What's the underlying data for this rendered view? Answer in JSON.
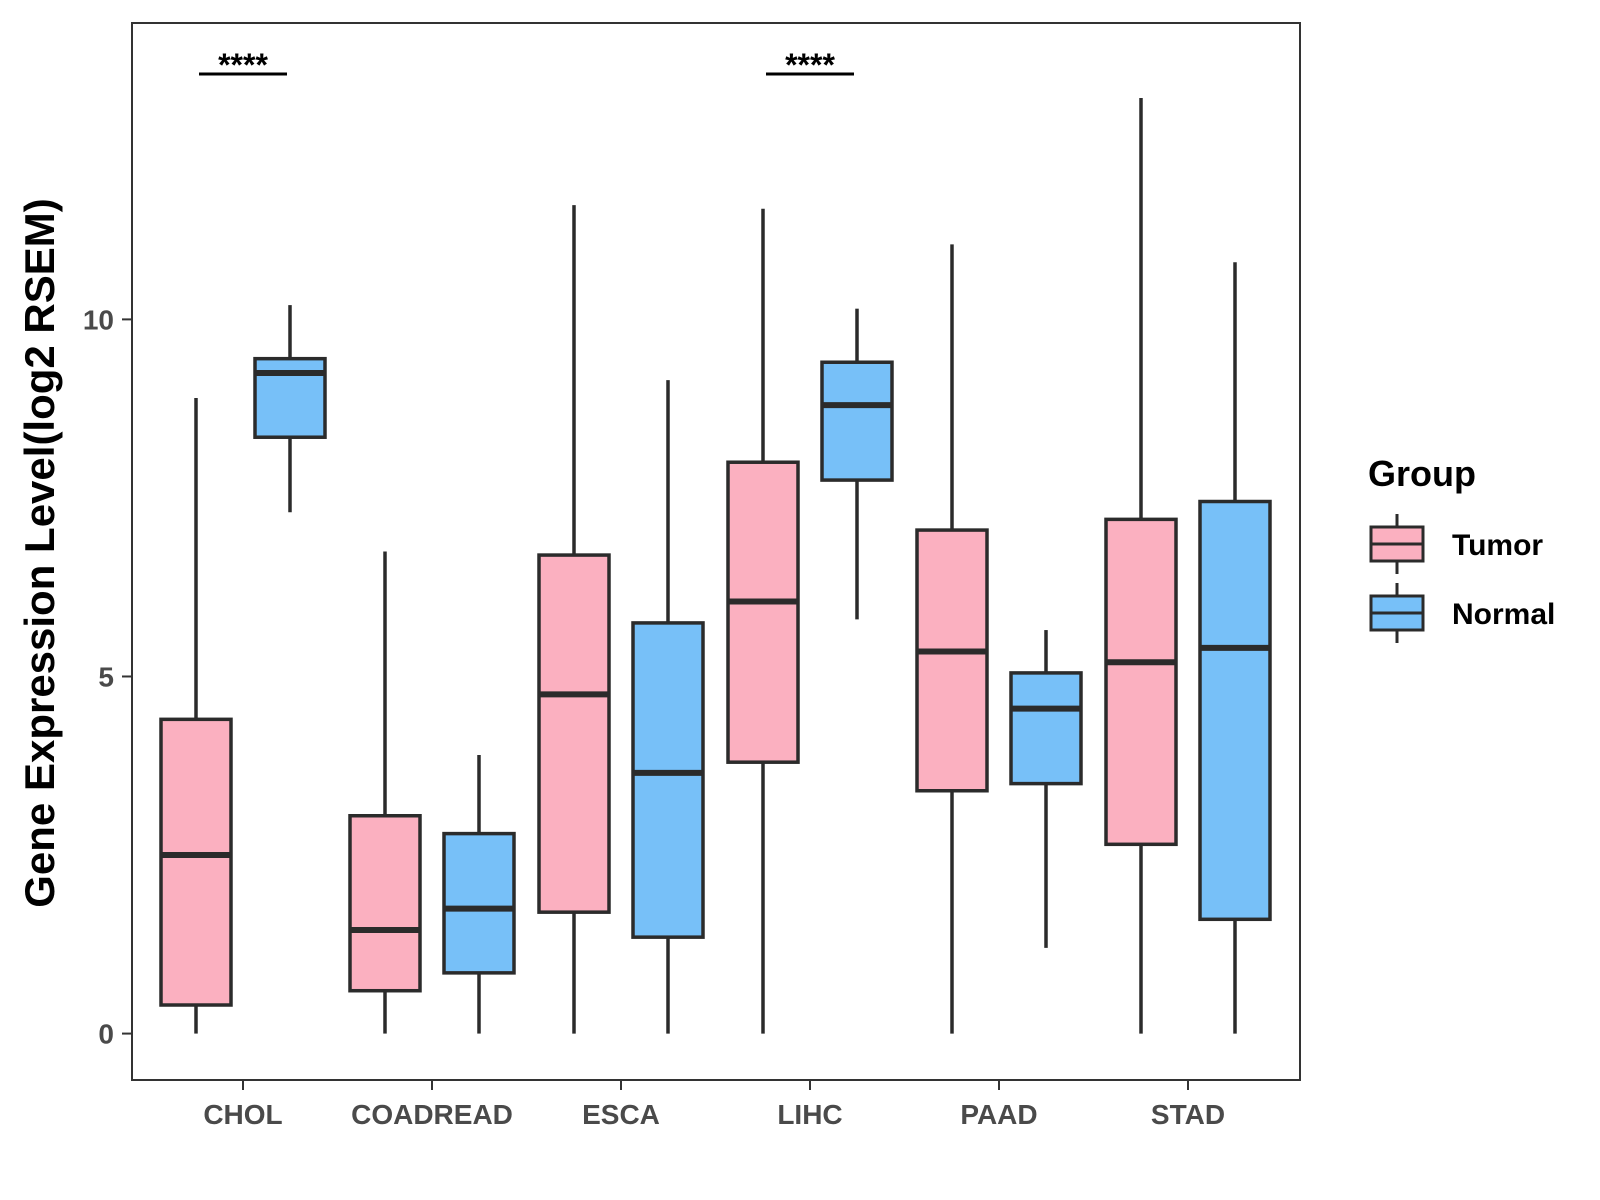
{
  "chart_data": {
    "type": "boxplot",
    "title": "",
    "xlabel": "",
    "ylabel": "Gene Expression Level(log2 RSEM)",
    "ylim": [
      -0.65,
      14.15
    ],
    "yticks": [
      0,
      5,
      10
    ],
    "grid": false,
    "legend_position": "right",
    "legend": {
      "title": "Group",
      "items": [
        {
          "name": "Tumor",
          "color": "#fbb0c0"
        },
        {
          "name": "Normal",
          "color": "#77c0f8"
        }
      ]
    },
    "categories": [
      "CHOL",
      "COADREAD",
      "ESCA",
      "LIHC",
      "PAAD",
      "STAD"
    ],
    "series": [
      {
        "name": "Tumor",
        "color": "#fbb0c0",
        "boxes": [
          {
            "min": 0.0,
            "q1": 0.4,
            "median": 2.5,
            "q3": 4.4,
            "max": 8.9
          },
          {
            "min": 0.0,
            "q1": 0.6,
            "median": 1.45,
            "q3": 3.05,
            "max": 6.75
          },
          {
            "min": 0.0,
            "q1": 1.7,
            "median": 4.75,
            "q3": 6.7,
            "max": 11.6
          },
          {
            "min": 0.0,
            "q1": 3.8,
            "median": 6.05,
            "q3": 8.0,
            "max": 11.55
          },
          {
            "min": 0.0,
            "q1": 3.4,
            "median": 5.35,
            "q3": 7.05,
            "max": 11.05
          },
          {
            "min": 0.0,
            "q1": 2.65,
            "median": 5.2,
            "q3": 7.2,
            "max": 13.1
          }
        ]
      },
      {
        "name": "Normal",
        "color": "#77c0f8",
        "boxes": [
          {
            "min": 7.3,
            "q1": 8.35,
            "median": 9.25,
            "q3": 9.45,
            "max": 10.2
          },
          {
            "min": 0.0,
            "q1": 0.85,
            "median": 1.75,
            "q3": 2.8,
            "max": 3.9
          },
          {
            "min": 0.0,
            "q1": 1.35,
            "median": 3.65,
            "q3": 5.75,
            "max": 9.15
          },
          {
            "min": 5.8,
            "q1": 7.75,
            "median": 8.8,
            "q3": 9.4,
            "max": 10.15
          },
          {
            "min": 1.2,
            "q1": 3.5,
            "median": 4.55,
            "q3": 5.05,
            "max": 5.65
          },
          {
            "min": 0.0,
            "q1": 1.6,
            "median": 5.4,
            "q3": 7.45,
            "max": 10.8
          }
        ]
      }
    ],
    "annotations": [
      {
        "category": "CHOL",
        "text": "****"
      },
      {
        "category": "LIHC",
        "text": "****"
      }
    ]
  }
}
